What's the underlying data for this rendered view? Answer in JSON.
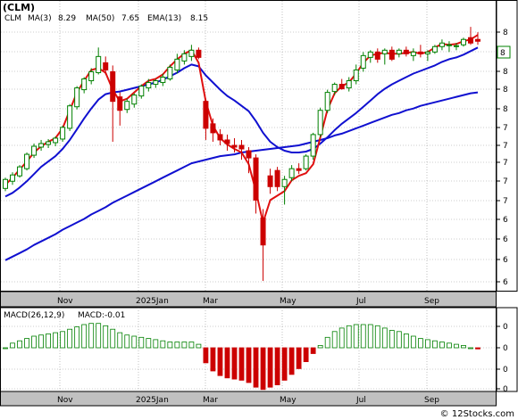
{
  "chart_data": [
    {
      "type": "candlestick",
      "title": "(CLM)",
      "ticker": "CLM",
      "indicators": [
        {
          "label": "MA(3)",
          "value": "8.29",
          "color": "#e01010"
        },
        {
          "label": "MA(50)",
          "value": "7.65",
          "color": "#1010d0"
        },
        {
          "label": "EMA(13)",
          "value": "8.15",
          "color": "#1010d0"
        }
      ],
      "last_price_label": "8",
      "x_tick_labels": [
        "Nov",
        "2025Jan",
        "Mar",
        "May",
        "Jul",
        "Sep"
      ],
      "y_tick_labels": [
        "8",
        "8",
        "8",
        "8",
        "8",
        "7",
        "7",
        "7",
        "7",
        "7",
        "6",
        "6",
        "6",
        "6"
      ],
      "ylim": [
        5.5,
        8.6
      ],
      "candles": [
        [
          6.58,
          6.7,
          6.55,
          6.68
        ],
        [
          6.66,
          6.76,
          6.62,
          6.73
        ],
        [
          6.72,
          6.84,
          6.7,
          6.82
        ],
        [
          6.8,
          6.98,
          6.78,
          6.96
        ],
        [
          6.95,
          7.08,
          6.92,
          7.05
        ],
        [
          7.04,
          7.12,
          7.0,
          7.08
        ],
        [
          7.07,
          7.13,
          7.03,
          7.1
        ],
        [
          7.09,
          7.16,
          7.05,
          7.14
        ],
        [
          7.13,
          7.28,
          7.1,
          7.26
        ],
        [
          7.25,
          7.52,
          7.22,
          7.5
        ],
        [
          7.49,
          7.72,
          7.46,
          7.7
        ],
        [
          7.68,
          7.82,
          7.64,
          7.8
        ],
        [
          7.78,
          7.92,
          7.74,
          7.88
        ],
        [
          7.87,
          8.15,
          7.85,
          8.05
        ],
        [
          7.98,
          8.05,
          7.85,
          7.9
        ],
        [
          7.88,
          7.95,
          7.1,
          7.55
        ],
        [
          7.6,
          7.65,
          7.28,
          7.45
        ],
        [
          7.46,
          7.58,
          7.42,
          7.55
        ],
        [
          7.52,
          7.64,
          7.48,
          7.62
        ],
        [
          7.61,
          7.74,
          7.58,
          7.72
        ],
        [
          7.7,
          7.8,
          7.66,
          7.76
        ],
        [
          7.74,
          7.8,
          7.7,
          7.78
        ],
        [
          7.76,
          7.86,
          7.72,
          7.82
        ],
        [
          7.8,
          7.96,
          7.78,
          7.93
        ],
        [
          7.9,
          8.08,
          7.86,
          8.02
        ],
        [
          8.0,
          8.12,
          7.96,
          8.08
        ],
        [
          8.05,
          8.18,
          8.0,
          8.12
        ],
        [
          8.12,
          8.15,
          8.02,
          8.04
        ],
        [
          7.55,
          7.58,
          7.12,
          7.25
        ],
        [
          7.3,
          7.36,
          7.1,
          7.2
        ],
        [
          7.18,
          7.24,
          7.06,
          7.12
        ],
        [
          7.12,
          7.18,
          7.0,
          7.08
        ],
        [
          7.06,
          7.14,
          6.98,
          7.04
        ],
        [
          7.06,
          7.12,
          6.9,
          7.02
        ],
        [
          7.0,
          7.04,
          6.75,
          6.92
        ],
        [
          6.92,
          6.96,
          6.3,
          6.45
        ],
        [
          6.25,
          6.35,
          5.55,
          5.95
        ],
        [
          6.72,
          6.8,
          6.52,
          6.6
        ],
        [
          6.78,
          6.82,
          6.55,
          6.6
        ],
        [
          6.6,
          6.72,
          6.4,
          6.68
        ],
        [
          6.7,
          6.84,
          6.66,
          6.8
        ],
        [
          6.8,
          6.86,
          6.74,
          6.78
        ],
        [
          6.8,
          6.96,
          6.78,
          6.94
        ],
        [
          6.94,
          7.2,
          6.9,
          7.18
        ],
        [
          7.18,
          7.48,
          7.15,
          7.45
        ],
        [
          7.45,
          7.68,
          7.42,
          7.65
        ],
        [
          7.66,
          7.76,
          7.62,
          7.74
        ],
        [
          7.74,
          7.8,
          7.68,
          7.69
        ],
        [
          7.7,
          7.82,
          7.66,
          7.78
        ],
        [
          7.78,
          7.96,
          7.74,
          7.9
        ],
        [
          7.92,
          8.1,
          7.88,
          8.06
        ],
        [
          8.04,
          8.12,
          7.98,
          8.1
        ],
        [
          8.1,
          8.14,
          7.98,
          8.02
        ],
        [
          8.08,
          8.14,
          7.96,
          8.12
        ],
        [
          8.12,
          8.16,
          8.0,
          8.02
        ],
        [
          8.08,
          8.14,
          8.04,
          8.12
        ],
        [
          8.12,
          8.16,
          8.05,
          8.08
        ],
        [
          8.06,
          8.14,
          8.0,
          8.1
        ],
        [
          8.1,
          8.18,
          8.04,
          8.08
        ],
        [
          8.08,
          8.12,
          8.0,
          8.1
        ],
        [
          8.1,
          8.18,
          8.08,
          8.16
        ],
        [
          8.16,
          8.24,
          8.12,
          8.2
        ],
        [
          8.18,
          8.22,
          8.1,
          8.18
        ],
        [
          8.16,
          8.2,
          8.12,
          8.17
        ],
        [
          8.18,
          8.26,
          8.16,
          8.24
        ],
        [
          8.26,
          8.38,
          8.18,
          8.2
        ],
        [
          8.24,
          8.32,
          8.18,
          8.22
        ]
      ],
      "ma3": [
        6.62,
        6.7,
        6.79,
        6.88,
        6.98,
        7.05,
        7.1,
        7.14,
        7.25,
        7.45,
        7.65,
        7.78,
        7.9,
        7.92,
        7.87,
        7.68,
        7.55,
        7.58,
        7.65,
        7.72,
        7.78,
        7.8,
        7.85,
        7.94,
        8.02,
        8.08,
        8.12,
        7.98,
        7.55,
        7.28,
        7.14,
        7.07,
        7.02,
        6.98,
        6.85,
        6.55,
        6.2,
        6.45,
        6.5,
        6.55,
        6.67,
        6.72,
        6.75,
        6.85,
        7.15,
        7.46,
        7.64,
        7.72,
        7.76,
        7.86,
        7.98,
        8.06,
        8.08,
        8.09,
        8.08,
        8.08,
        8.09,
        8.1,
        8.08,
        8.1,
        8.15,
        8.19,
        8.18,
        8.19,
        8.22,
        8.24,
        8.29
      ],
      "ema13": [
        6.49,
        6.53,
        6.59,
        6.66,
        6.74,
        6.82,
        6.88,
        6.94,
        7.02,
        7.12,
        7.24,
        7.36,
        7.47,
        7.57,
        7.63,
        7.65,
        7.66,
        7.68,
        7.7,
        7.72,
        7.74,
        7.76,
        7.79,
        7.83,
        7.87,
        7.92,
        7.96,
        7.94,
        7.84,
        7.76,
        7.68,
        7.61,
        7.56,
        7.5,
        7.44,
        7.33,
        7.2,
        7.1,
        7.04,
        7.0,
        6.98,
        6.98,
        6.99,
        7.02,
        7.08,
        7.15,
        7.23,
        7.3,
        7.36,
        7.42,
        7.49,
        7.56,
        7.63,
        7.69,
        7.74,
        7.78,
        7.82,
        7.86,
        7.89,
        7.92,
        7.95,
        7.99,
        8.02,
        8.04,
        8.07,
        8.11,
        8.15
      ],
      "ma50": [
        5.78,
        5.82,
        5.86,
        5.9,
        5.95,
        5.99,
        6.03,
        6.07,
        6.12,
        6.16,
        6.2,
        6.24,
        6.29,
        6.33,
        6.37,
        6.42,
        6.46,
        6.5,
        6.54,
        6.58,
        6.62,
        6.66,
        6.7,
        6.74,
        6.78,
        6.82,
        6.86,
        6.88,
        6.9,
        6.92,
        6.94,
        6.95,
        6.96,
        6.98,
        6.99,
        7.0,
        7.01,
        7.02,
        7.03,
        7.04,
        7.05,
        7.06,
        7.08,
        7.1,
        7.12,
        7.14,
        7.17,
        7.19,
        7.22,
        7.25,
        7.28,
        7.31,
        7.34,
        7.37,
        7.4,
        7.42,
        7.45,
        7.47,
        7.5,
        7.52,
        7.54,
        7.56,
        7.58,
        7.6,
        7.62,
        7.64,
        7.65
      ],
      "xlabel": "",
      "ylabel": ""
    },
    {
      "type": "bar",
      "title": "MACD(26,12,9)",
      "indicator_label": "MACD:-0.01",
      "y_tick_labels": [
        "0",
        "0",
        "0",
        "0"
      ],
      "values": [
        0.0,
        0.04,
        0.06,
        0.08,
        0.1,
        0.11,
        0.12,
        0.13,
        0.14,
        0.16,
        0.18,
        0.2,
        0.21,
        0.21,
        0.19,
        0.16,
        0.13,
        0.11,
        0.1,
        0.09,
        0.08,
        0.07,
        0.06,
        0.05,
        0.05,
        0.05,
        0.05,
        0.03,
        -0.13,
        -0.2,
        -0.24,
        -0.26,
        -0.27,
        -0.28,
        -0.3,
        -0.34,
        -0.36,
        -0.34,
        -0.32,
        -0.28,
        -0.23,
        -0.18,
        -0.12,
        -0.05,
        0.02,
        0.09,
        0.14,
        0.17,
        0.19,
        0.2,
        0.2,
        0.2,
        0.19,
        0.17,
        0.15,
        0.14,
        0.12,
        0.1,
        0.08,
        0.07,
        0.06,
        0.05,
        0.04,
        0.03,
        0.02,
        0.0,
        -0.01
      ],
      "x_tick_labels": [
        "Nov",
        "2025Jan",
        "Mar",
        "May",
        "Jul",
        "Sep"
      ]
    }
  ],
  "watermark": "© 12Stocks.com",
  "colors": {
    "up": "#008000",
    "down": "#cc0000",
    "ma3": "#e01010",
    "ema13": "#1010d0",
    "ma50": "#1010d0",
    "grid": "#9a9a9a"
  }
}
